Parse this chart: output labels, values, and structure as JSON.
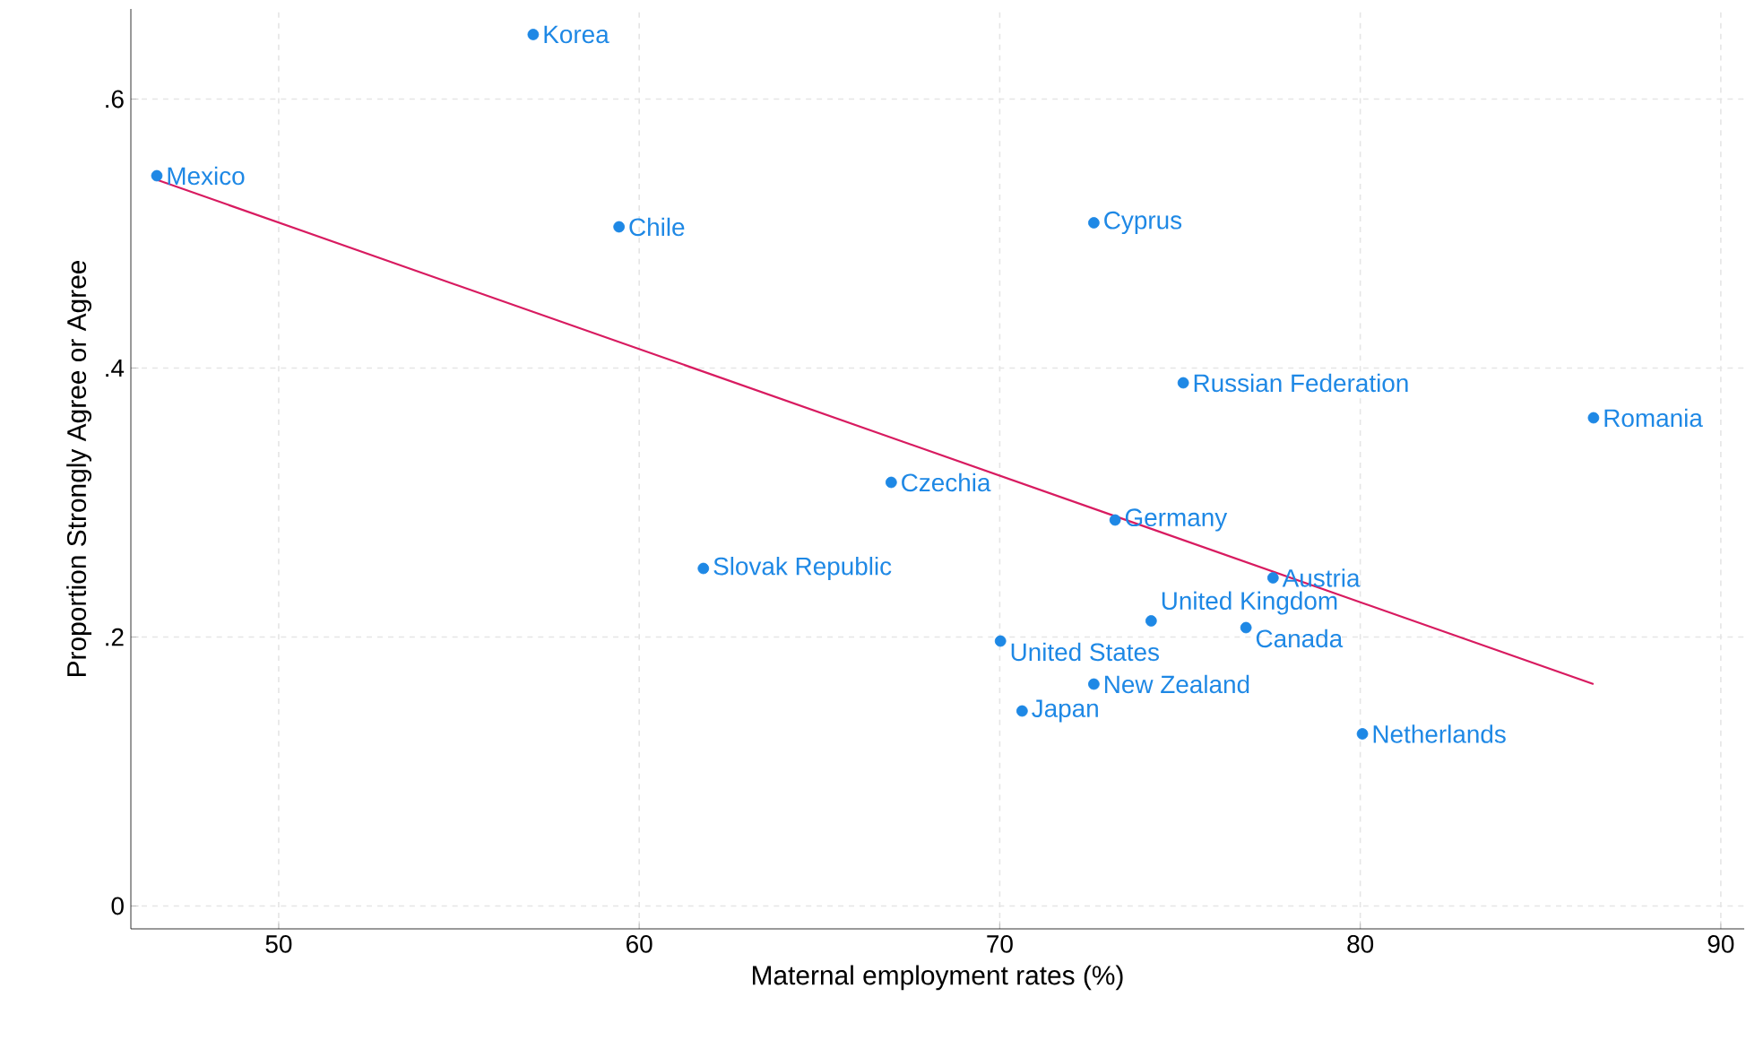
{
  "chart_data": {
    "type": "scatter",
    "xlabel": "Maternal employment rates (%)",
    "ylabel": "Proportion Strongly Agree or Agree",
    "xlim": [
      45.9,
      90.65
    ],
    "ylim": [
      -0.017,
      0.667
    ],
    "xticks": [
      50,
      60,
      70,
      80,
      90
    ],
    "yticks": [
      {
        "value": 0,
        "label": "0"
      },
      {
        "value": 0.2,
        "label": ".2"
      },
      {
        "value": 0.4,
        "label": ".4"
      },
      {
        "value": 0.6,
        "label": ".6"
      }
    ],
    "grid": true,
    "series": [
      {
        "type": "scatter",
        "marker": "circle",
        "color": "#1e88e5",
        "x": [
          57.06,
          46.62,
          59.44,
          72.61,
          75.09,
          86.47,
          66.99,
          73.2,
          61.78,
          77.58,
          74.2,
          76.83,
          70.02,
          72.61,
          70.62,
          80.06
        ],
        "values": [
          0.648,
          0.543,
          0.505,
          0.508,
          0.389,
          0.363,
          0.315,
          0.287,
          0.251,
          0.244,
          0.212,
          0.207,
          0.197,
          0.165,
          0.145,
          0.128
        ]
      },
      {
        "type": "line",
        "marker": "none",
        "color": "#d81b60",
        "x": [
          46.62,
          86.47
        ],
        "values": [
          0.54,
          0.165
        ]
      }
    ],
    "annotations": [
      {
        "text": "Korea",
        "x": 57.06,
        "y": 0.648
      },
      {
        "text": "Mexico",
        "x": 46.62,
        "y": 0.543
      },
      {
        "text": "Chile",
        "x": 59.44,
        "y": 0.505
      },
      {
        "text": "Cyprus",
        "x": 72.61,
        "y": 0.508
      },
      {
        "text": "Russian Federation",
        "x": 75.09,
        "y": 0.389
      },
      {
        "text": "Romania",
        "x": 86.47,
        "y": 0.363
      },
      {
        "text": "Czechia",
        "x": 66.99,
        "y": 0.315
      },
      {
        "text": "Germany",
        "x": 73.2,
        "y": 0.287
      },
      {
        "text": "Slovak Republic",
        "x": 61.78,
        "y": 0.251
      },
      {
        "text": "Austria",
        "x": 77.58,
        "y": 0.244
      },
      {
        "text": "United Kingdom",
        "x": 74.2,
        "y": 0.212
      },
      {
        "text": "Canada",
        "x": 76.83,
        "y": 0.207
      },
      {
        "text": "United States",
        "x": 70.02,
        "y": 0.197
      },
      {
        "text": "New Zealand",
        "x": 72.61,
        "y": 0.165
      },
      {
        "text": "Japan",
        "x": 70.62,
        "y": 0.145
      },
      {
        "text": "Netherlands",
        "x": 80.06,
        "y": 0.128
      }
    ]
  }
}
